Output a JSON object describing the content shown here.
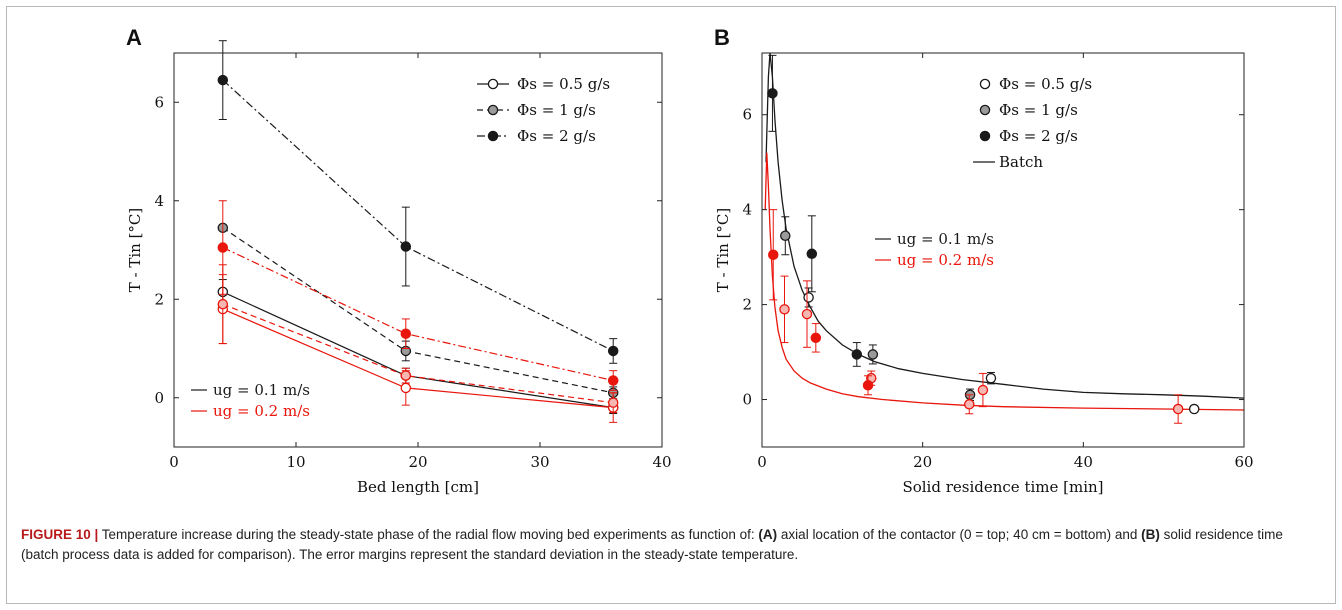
{
  "caption": {
    "label": "FIGURE 10 |",
    "p1": " Temperature increase during the steady-state phase of the radial flow moving bed experiments as function of: ",
    "a": "(A)",
    "p2": " axial location of the contactor (0 = top; 40 cm = bottom) and ",
    "b": "(B)",
    "p3": " solid residence time (batch process data is added for comparison). The error margins represent the standard deviation in the steady-state temperature."
  },
  "colors": {
    "black": "#1a1a1a",
    "red": "#e8160c",
    "gray": "#9a9a9a",
    "white": "#ffffff"
  },
  "chart_data": [
    {
      "panel": "A",
      "type": "line",
      "xlabel": "Bed length [cm]",
      "ylabel": "T - Tin [°C]",
      "xlim": [
        0,
        40
      ],
      "ylim": [
        -1,
        7
      ],
      "xticks": [
        0,
        10,
        20,
        30,
        40
      ],
      "yticks": [
        0,
        2,
        4,
        6
      ],
      "grid": false,
      "legend_placement": "top-right",
      "legend": [
        {
          "text": "Φs = 0.5 g/s",
          "marker": "open",
          "dash": "solid"
        },
        {
          "text": "Φs = 1 g/s",
          "marker": "gray",
          "dash": "dashed"
        },
        {
          "text": "Φs = 2 g/s",
          "marker": "filled",
          "dash": "dashdot"
        }
      ],
      "annotations": [
        {
          "text": "ug = 0.1 m/s",
          "color": "black"
        },
        {
          "text": "ug = 0.2 m/s",
          "color": "red"
        }
      ],
      "series": [
        {
          "flux": "0.5 g/s",
          "ug": "0.1 m/s",
          "color": "black",
          "marker": "open",
          "dash": "solid",
          "x": [
            4,
            19,
            36
          ],
          "y": [
            2.15,
            0.45,
            -0.2
          ],
          "err": [
            0.25,
            0.15,
            0.12
          ]
        },
        {
          "flux": "1 g/s",
          "ug": "0.1 m/s",
          "color": "black",
          "marker": "gray",
          "dash": "dashed",
          "x": [
            4,
            19,
            36
          ],
          "y": [
            3.45,
            0.95,
            0.1
          ],
          "err": [
            0.0,
            0.2,
            0.12
          ]
        },
        {
          "flux": "2 g/s",
          "ug": "0.1 m/s",
          "color": "black",
          "marker": "filled",
          "dash": "dashdot",
          "x": [
            4,
            19,
            36
          ],
          "y": [
            6.45,
            3.07,
            0.95
          ],
          "err": [
            0.8,
            0.8,
            0.25
          ]
        },
        {
          "flux": "0.5 g/s",
          "ug": "0.2 m/s",
          "color": "red",
          "marker": "open",
          "dash": "solid",
          "x": [
            4,
            19,
            36
          ],
          "y": [
            1.8,
            0.2,
            -0.2
          ],
          "err": [
            0.7,
            0.35,
            0.3
          ]
        },
        {
          "flux": "1 g/s",
          "ug": "0.2 m/s",
          "color": "red",
          "marker": "redopen",
          "dash": "dashed",
          "x": [
            4,
            19,
            36
          ],
          "y": [
            1.9,
            0.45,
            -0.1
          ],
          "err": [
            0.8,
            0.15,
            0.2
          ]
        },
        {
          "flux": "2 g/s",
          "ug": "0.2 m/s",
          "color": "red",
          "marker": "filled",
          "dash": "dashdot",
          "x": [
            4,
            19,
            36
          ],
          "y": [
            3.05,
            1.3,
            0.35
          ],
          "err": [
            0.95,
            0.3,
            0.2
          ]
        }
      ]
    },
    {
      "panel": "B",
      "type": "scatter",
      "xlabel": "Solid residence time [min]",
      "ylabel": "T - Tin [°C]",
      "xlim": [
        0,
        60
      ],
      "ylim": [
        -1,
        7.3
      ],
      "xticks": [
        0,
        20,
        40,
        60
      ],
      "yticks": [
        0,
        2,
        4,
        6
      ],
      "grid": false,
      "legend_placement": "top-right",
      "legend": [
        {
          "text": "Φs = 0.5 g/s",
          "marker": "open"
        },
        {
          "text": "Φs = 1 g/s",
          "marker": "gray"
        },
        {
          "text": "Φs = 2 g/s",
          "marker": "filled"
        },
        {
          "text": "Batch",
          "marker": "line"
        }
      ],
      "annotations": [
        {
          "text": "ug = 0.1 m/s",
          "color": "black"
        },
        {
          "text": "ug = 0.2 m/s",
          "color": "red"
        }
      ],
      "batch": [
        {
          "ug": "0.1 m/s",
          "color": "black",
          "x": [
            0.5,
            0.8,
            1.0,
            1.3,
            1.6,
            2,
            2.5,
            3,
            4,
            5,
            6,
            7,
            8,
            10,
            12,
            14,
            17,
            20,
            25,
            30,
            35,
            40,
            45,
            50,
            55,
            60
          ],
          "y": [
            5.0,
            6.8,
            7.3,
            6.8,
            5.9,
            5.0,
            4.2,
            3.6,
            2.8,
            2.3,
            1.95,
            1.65,
            1.45,
            1.15,
            0.95,
            0.8,
            0.65,
            0.55,
            0.42,
            0.32,
            0.22,
            0.15,
            0.12,
            0.1,
            0.07,
            0.03
          ]
        },
        {
          "ug": "0.2 m/s",
          "color": "red",
          "x": [
            0.4,
            0.6,
            0.8,
            1.0,
            1.3,
            1.6,
            2,
            2.5,
            3,
            4,
            5,
            6,
            8,
            10,
            12,
            15,
            20,
            25,
            30,
            40,
            50,
            60
          ],
          "y": [
            4.0,
            5.2,
            4.5,
            3.6,
            2.6,
            1.95,
            1.45,
            1.1,
            0.85,
            0.6,
            0.45,
            0.35,
            0.22,
            0.12,
            0.06,
            0.0,
            -0.07,
            -0.12,
            -0.15,
            -0.18,
            -0.2,
            -0.22
          ]
        }
      ],
      "series": [
        {
          "flux": "0.5 g/s",
          "ug": "0.1 m/s",
          "color": "black",
          "marker": "open",
          "x": [
            5.8,
            28.5,
            53.8
          ],
          "y": [
            2.15,
            0.45,
            -0.2
          ],
          "err": [
            0.2,
            0.12,
            0.05
          ]
        },
        {
          "flux": "1 g/s",
          "ug": "0.1 m/s",
          "color": "black",
          "marker": "gray",
          "x": [
            2.9,
            13.8,
            25.9
          ],
          "y": [
            3.45,
            0.95,
            0.1
          ],
          "err": [
            0.4,
            0.2,
            0.12
          ]
        },
        {
          "flux": "2 g/s",
          "ug": "0.1 m/s",
          "color": "black",
          "marker": "filled",
          "x": [
            1.3,
            6.2,
            11.8
          ],
          "y": [
            6.45,
            3.07,
            0.95
          ],
          "err": [
            0.8,
            0.8,
            0.25
          ]
        },
        {
          "flux": "0.5 g/s",
          "ug": "0.2 m/s",
          "color": "red",
          "marker": "redopen",
          "x": [
            5.6,
            27.5,
            51.8
          ],
          "y": [
            1.8,
            0.2,
            -0.2
          ],
          "err": [
            0.7,
            0.35,
            0.3
          ]
        },
        {
          "flux": "1 g/s",
          "ug": "0.2 m/s",
          "color": "red",
          "marker": "redopen",
          "x": [
            2.8,
            13.6,
            25.8
          ],
          "y": [
            1.9,
            0.45,
            -0.1
          ],
          "err": [
            0.7,
            0.15,
            0.2
          ]
        },
        {
          "flux": "2 g/s",
          "ug": "0.2 m/s",
          "color": "red",
          "marker": "filled",
          "x": [
            1.4,
            6.7,
            13.2
          ],
          "y": [
            3.05,
            1.3,
            0.3
          ],
          "err": [
            0.95,
            0.3,
            0.2
          ]
        }
      ]
    }
  ]
}
